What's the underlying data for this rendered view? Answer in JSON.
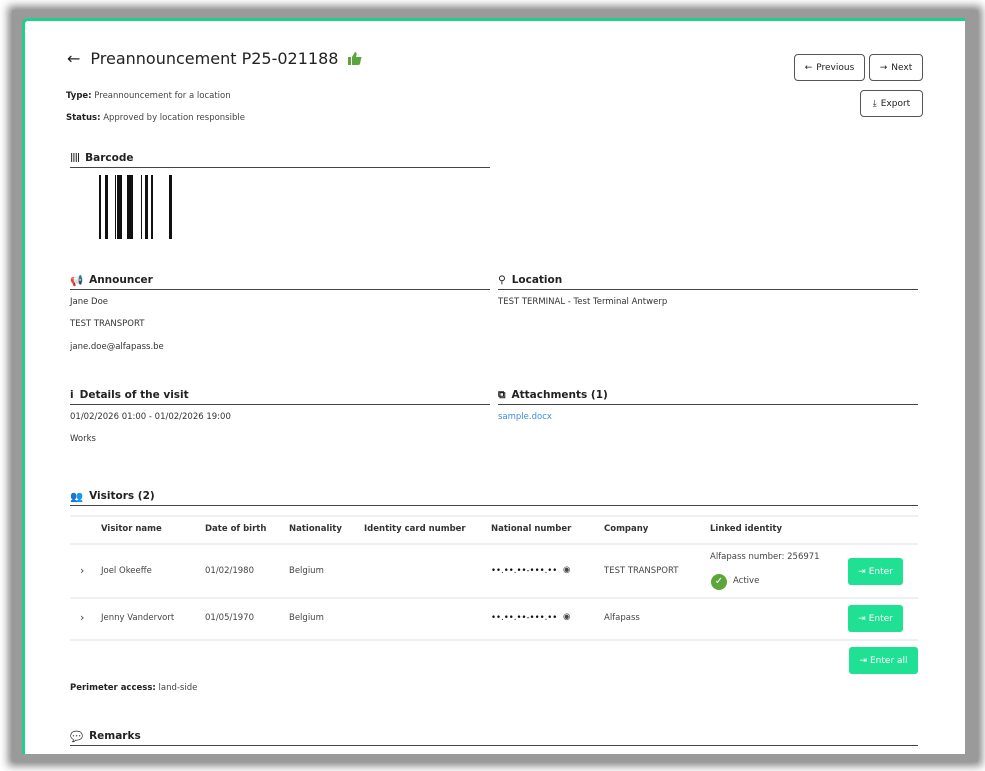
{
  "header": {
    "title": "Preannouncement P25-021188",
    "type_label": "Type:",
    "type_value": "Preannouncement for a location",
    "status_label": "Status:",
    "status_value": "Approved by location responsible"
  },
  "toolbar": {
    "previous": "Previous",
    "next": "Next",
    "export": "Export"
  },
  "barcode": {
    "heading": "Barcode"
  },
  "announcer": {
    "heading": "Announcer",
    "name": "Jane Doe",
    "company": "TEST TRANSPORT",
    "email": "jane.doe@alfapass.be"
  },
  "location": {
    "heading": "Location",
    "value": "TEST TERMINAL - Test Terminal Antwerp"
  },
  "details": {
    "heading": "Details of the visit",
    "period": "01/02/2026 01:00 - 01/02/2026 19:00",
    "purpose": "Works"
  },
  "attachments": {
    "heading": "Attachments (1)",
    "file": "sample.docx"
  },
  "visitors": {
    "heading": "Visitors (2)",
    "columns": [
      "Visitor name",
      "Date of birth",
      "Nationality",
      "Identity card number",
      "National number",
      "Company",
      "Linked identity"
    ],
    "rows": [
      {
        "name": "Joel Okeeffe",
        "dob": "01/02/1980",
        "nationality": "Belgium",
        "id_card": "",
        "national_number": "••.••.••-•••.••",
        "company": "TEST TRANSPORT",
        "linked": "Alfapass number: 256971",
        "linked_status": "Active",
        "action": "Enter"
      },
      {
        "name": "Jenny Vandervort",
        "dob": "01/05/1970",
        "nationality": "Belgium",
        "id_card": "",
        "national_number": "••.••.••-•••.••",
        "company": "Alfapass",
        "linked": "",
        "linked_status": "",
        "action": "Enter"
      }
    ],
    "enter_all": "Enter all",
    "perimeter_label": "Perimeter access:",
    "perimeter_value": "land-side"
  },
  "remarks": {
    "heading": "Remarks"
  },
  "colors": {
    "accent": "#1fe093",
    "link": "#3b8ee0",
    "thumb": "#5aa63a"
  }
}
